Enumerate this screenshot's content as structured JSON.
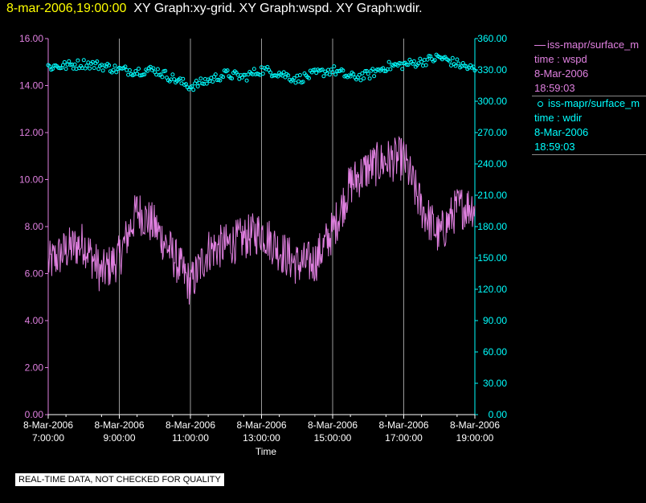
{
  "header": {
    "timestamp": "8-mar-2006,19:00:00",
    "title": "XY Graph:xy-grid.  XY Graph:wspd.  XY Graph:wdir."
  },
  "legend": {
    "wspd": {
      "source": "iss-mapr/surface_m",
      "field": "time : wspd",
      "date": "8-Mar-2006",
      "time": "18:59:03"
    },
    "wdir": {
      "source": "iss-mapr/surface_m",
      "field": "time : wdir",
      "date": "8-Mar-2006",
      "time": "18:59:03"
    }
  },
  "notice": "REAL-TIME DATA, NOT CHECKED FOR QUALITY",
  "colors": {
    "wspd": "#e080e0",
    "wdir": "#00ffff",
    "grid": "#9a9a9a",
    "axis_text": "#ffffff"
  },
  "chart_data": {
    "type": "line",
    "xlabel": "Time",
    "x_ticks": [
      {
        "date": "8-Mar-2006",
        "time": "7:00:00"
      },
      {
        "date": "8-Mar-2006",
        "time": "9:00:00"
      },
      {
        "date": "8-Mar-2006",
        "time": "11:00:00"
      },
      {
        "date": "8-Mar-2006",
        "time": "13:00:00"
      },
      {
        "date": "8-Mar-2006",
        "time": "15:00:00"
      },
      {
        "date": "8-Mar-2006",
        "time": "17:00:00"
      },
      {
        "date": "8-Mar-2006",
        "time": "19:00:00"
      }
    ],
    "xlim": [
      "7:00",
      "19:00"
    ],
    "grid": "vertical lines at each time tick",
    "y_left": {
      "ticks": [
        "0.00",
        "2.00",
        "4.00",
        "6.00",
        "8.00",
        "10.00",
        "12.00",
        "14.00",
        "16.00"
      ],
      "ylim": [
        0,
        16
      ]
    },
    "y_right": {
      "ticks": [
        "0.00",
        "30.00",
        "60.00",
        "90.00",
        "120.00",
        "150.00",
        "180.00",
        "210.00",
        "240.00",
        "270.00",
        "300.00",
        "330.00",
        "360.00"
      ],
      "ylim": [
        0,
        360
      ]
    },
    "series": [
      {
        "legend_key": "wspd",
        "axis": "left",
        "style": "line",
        "x": [
          "7:00",
          "7:30",
          "8:00",
          "8:30",
          "9:00",
          "9:30",
          "10:00",
          "10:30",
          "11:00",
          "11:30",
          "12:00",
          "12:30",
          "13:00",
          "13:30",
          "14:00",
          "14:30",
          "15:00",
          "15:30",
          "16:00",
          "16:30",
          "17:00",
          "17:30",
          "18:00",
          "18:30",
          "19:00"
        ],
        "values": [
          6.4,
          7.0,
          7.3,
          6.0,
          6.7,
          8.7,
          8.0,
          6.8,
          5.5,
          7.0,
          7.2,
          7.5,
          7.8,
          7.0,
          6.4,
          6.5,
          7.8,
          9.8,
          10.5,
          10.8,
          10.9,
          8.8,
          7.6,
          8.8,
          8.9
        ]
      },
      {
        "legend_key": "wdir",
        "axis": "right",
        "style": "markers",
        "x": [
          "7:00",
          "7:30",
          "8:00",
          "8:30",
          "9:00",
          "9:30",
          "10:00",
          "10:30",
          "11:00",
          "11:30",
          "12:00",
          "12:30",
          "13:00",
          "13:30",
          "14:00",
          "14:30",
          "15:00",
          "15:30",
          "16:00",
          "16:30",
          "17:00",
          "17:30",
          "18:00",
          "18:30",
          "19:00"
        ],
        "values": [
          333,
          334,
          336,
          334,
          330,
          329,
          330,
          322,
          314,
          320,
          326,
          323,
          330,
          327,
          321,
          326,
          330,
          323,
          325,
          333,
          335,
          338,
          342,
          336,
          330
        ]
      }
    ]
  }
}
